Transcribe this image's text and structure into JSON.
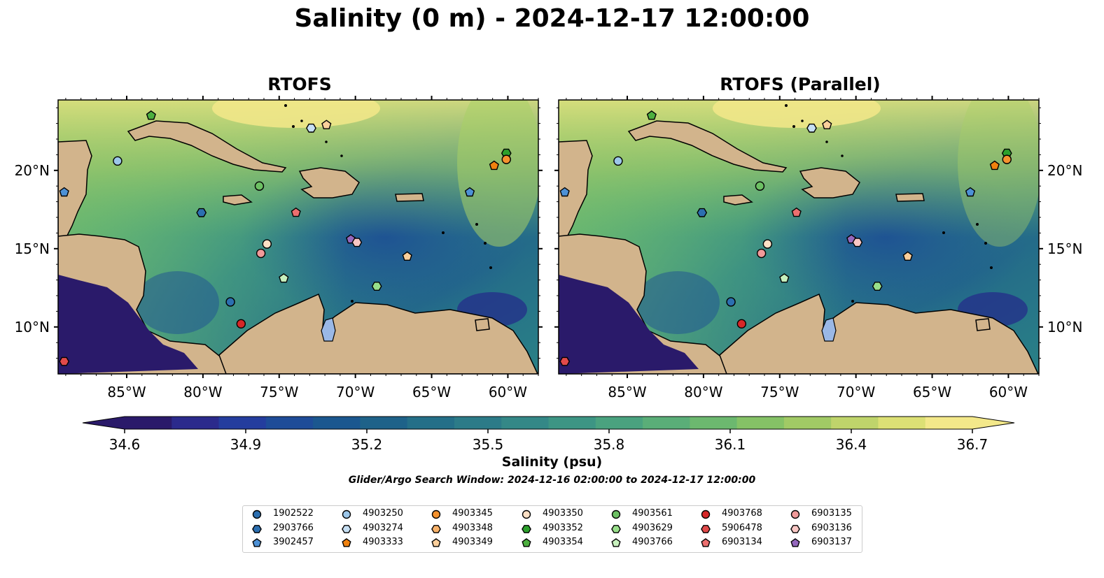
{
  "title": "Salinity (0 m) - 2024-12-17 12:00:00",
  "panels": [
    {
      "title": "RTOFS"
    },
    {
      "title": "RTOFS (Parallel)"
    }
  ],
  "axes": {
    "lon_ticks": [
      "85°W",
      "80°W",
      "75°W",
      "70°W",
      "65°W",
      "60°W"
    ],
    "lat_ticks": [
      "20°N",
      "15°N",
      "10°N"
    ]
  },
  "colorbar": {
    "label": "Salinity (psu)",
    "ticks": [
      "34.6",
      "34.9",
      "35.2",
      "35.5",
      "35.8",
      "36.1",
      "36.4",
      "36.7"
    ],
    "colors": [
      "#2a1a6a",
      "#2b2a8c",
      "#243d9e",
      "#1e4c98",
      "#1b578f",
      "#1e6289",
      "#246f88",
      "#2c7b88",
      "#348887",
      "#3d9584",
      "#4aa27f",
      "#5aae78",
      "#6cb86f",
      "#85c266",
      "#a1ca65",
      "#bfd46b",
      "#dce075",
      "#f3e88a"
    ]
  },
  "search_window": "Glider/Argo Search Window: 2024-12-16 02:00:00 to 2024-12-17 12:00:00",
  "legend": [
    {
      "label": "1902522",
      "marker": "circle",
      "color": "#2c6fb0"
    },
    {
      "label": "2903766",
      "marker": "hexagon",
      "color": "#2c6fb0"
    },
    {
      "label": "3902457",
      "marker": "pentagon",
      "color": "#4d91d6"
    },
    {
      "label": "4903250",
      "marker": "circle",
      "color": "#9cc7ea"
    },
    {
      "label": "4903274",
      "marker": "hexagon",
      "color": "#c6dff3"
    },
    {
      "label": "4903333",
      "marker": "pentagon",
      "color": "#f0820f"
    },
    {
      "label": "4903345",
      "marker": "circle",
      "color": "#f4922e"
    },
    {
      "label": "4903348",
      "marker": "hexagon",
      "color": "#f8b26a"
    },
    {
      "label": "4903349",
      "marker": "pentagon",
      "color": "#fbcf9b"
    },
    {
      "label": "4903350",
      "marker": "circle",
      "color": "#fde0c5"
    },
    {
      "label": "4903352",
      "marker": "hexagon",
      "color": "#2ca02c"
    },
    {
      "label": "4903354",
      "marker": "pentagon",
      "color": "#4caf3f"
    },
    {
      "label": "4903561",
      "marker": "circle",
      "color": "#6cc063"
    },
    {
      "label": "4903629",
      "marker": "hexagon",
      "color": "#98df8a"
    },
    {
      "label": "4903766",
      "marker": "pentagon",
      "color": "#c7f0bd"
    },
    {
      "label": "4903768",
      "marker": "circle",
      "color": "#d62728"
    },
    {
      "label": "5906478",
      "marker": "hexagon",
      "color": "#e14a4a"
    },
    {
      "label": "6903134",
      "marker": "pentagon",
      "color": "#ec6f6f"
    },
    {
      "label": "6903135",
      "marker": "circle",
      "color": "#f19a9a"
    },
    {
      "label": "6903136",
      "marker": "hexagon",
      "color": "#f9c7c4"
    },
    {
      "label": "6903137",
      "marker": "pentagon",
      "color": "#9467bd"
    }
  ],
  "map_extent": {
    "lon": [
      -89.5,
      -58.0
    ],
    "lat": [
      7.0,
      24.5
    ]
  },
  "floats": [
    {
      "id": "4903250",
      "lon": -85.6,
      "lat": 20.6
    },
    {
      "id": "3902457",
      "lon": -89.1,
      "lat": 18.6
    },
    {
      "id": "4903354",
      "lon": -83.4,
      "lat": 23.5
    },
    {
      "id": "4903274",
      "lon": -72.9,
      "lat": 22.7
    },
    {
      "id": "4903349",
      "lon": -71.9,
      "lat": 22.9
    },
    {
      "id": "4903352",
      "lon": -60.1,
      "lat": 21.1
    },
    {
      "id": "4903345",
      "lon": -60.1,
      "lat": 20.7
    },
    {
      "id": "4903333",
      "lon": -60.9,
      "lat": 20.3
    },
    {
      "id": "4903561",
      "lon": -76.3,
      "lat": 19.0
    },
    {
      "id": "3902457",
      "lon": -62.5,
      "lat": 18.6
    },
    {
      "id": "2903766",
      "lon": -80.1,
      "lat": 17.3
    },
    {
      "id": "6903134",
      "lon": -73.9,
      "lat": 17.3
    },
    {
      "id": "6903137",
      "lon": -70.3,
      "lat": 15.6
    },
    {
      "id": "6903136",
      "lon": -69.9,
      "lat": 15.4
    },
    {
      "id": "4903350",
      "lon": -75.8,
      "lat": 15.3
    },
    {
      "id": "6903135",
      "lon": -76.2,
      "lat": 14.7
    },
    {
      "id": "4903349",
      "lon": -66.6,
      "lat": 14.5
    },
    {
      "id": "4903766",
      "lon": -74.7,
      "lat": 13.1
    },
    {
      "id": "4903629",
      "lon": -68.6,
      "lat": 12.6
    },
    {
      "id": "1902522",
      "lon": -78.2,
      "lat": 11.6
    },
    {
      "id": "4903768",
      "lon": -77.5,
      "lat": 10.2
    },
    {
      "id": "5906478",
      "lon": -89.1,
      "lat": 7.8
    }
  ]
}
